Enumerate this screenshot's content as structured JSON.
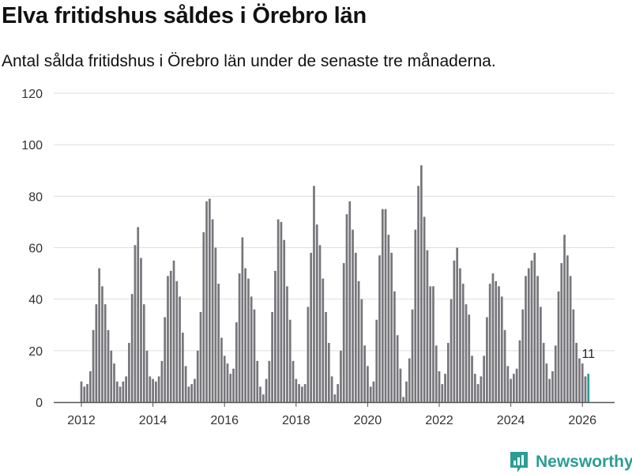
{
  "header": {
    "title": "Elva fritidshus såldes i Örebro län",
    "subtitle": "Antal sålda fritidshus i Örebro län under de senaste tre månaderna."
  },
  "brand": {
    "name": "Newsworthy"
  },
  "colors": {
    "bar": "#77767b",
    "highlight": "#2a9d95",
    "grid": "#dddddd",
    "axis": "#555555"
  },
  "chart_data": {
    "type": "bar",
    "title": "Elva fritidshus såldes i Örebro län",
    "subtitle": "Antal sålda fritidshus i Örebro län under de senaste tre månaderna.",
    "xlabel": "",
    "ylabel": "",
    "ylim": [
      0,
      120
    ],
    "yticks": [
      "0",
      "20",
      "40",
      "60",
      "80",
      "100",
      "120"
    ],
    "xticks": [
      "2012",
      "2014",
      "2016",
      "2018",
      "2020",
      "2022",
      "2024",
      "2026"
    ],
    "start": "2012-01",
    "end": "2026-03",
    "grid": true,
    "annotation": {
      "label": "11",
      "target": "last"
    },
    "values": [
      8,
      6,
      7,
      12,
      28,
      38,
      52,
      45,
      38,
      28,
      20,
      15,
      8,
      6,
      8,
      10,
      23,
      42,
      61,
      68,
      56,
      38,
      20,
      10,
      9,
      8,
      10,
      16,
      33,
      49,
      51,
      55,
      47,
      41,
      27,
      14,
      6,
      7,
      9,
      20,
      35,
      66,
      78,
      79,
      71,
      60,
      46,
      25,
      18,
      15,
      11,
      13,
      31,
      50,
      64,
      52,
      48,
      41,
      36,
      16,
      6,
      3,
      9,
      16,
      35,
      51,
      71,
      70,
      63,
      45,
      32,
      16,
      9,
      7,
      6,
      7,
      37,
      58,
      84,
      69,
      61,
      48,
      35,
      23,
      10,
      3,
      7,
      20,
      54,
      73,
      78,
      67,
      58,
      47,
      40,
      22,
      14,
      6,
      8,
      32,
      57,
      75,
      75,
      65,
      58,
      43,
      26,
      13,
      2,
      8,
      17,
      36,
      67,
      84,
      92,
      72,
      59,
      45,
      45,
      22,
      12,
      7,
      11,
      23,
      40,
      55,
      60,
      52,
      46,
      38,
      34,
      18,
      11,
      7,
      10,
      18,
      33,
      46,
      50,
      47,
      45,
      41,
      28,
      14,
      9,
      11,
      13,
      24,
      36,
      49,
      52,
      55,
      58,
      49,
      37,
      23,
      15,
      9,
      12,
      22,
      43,
      54,
      65,
      57,
      49,
      36,
      23,
      17,
      15,
      10,
      11
    ]
  }
}
